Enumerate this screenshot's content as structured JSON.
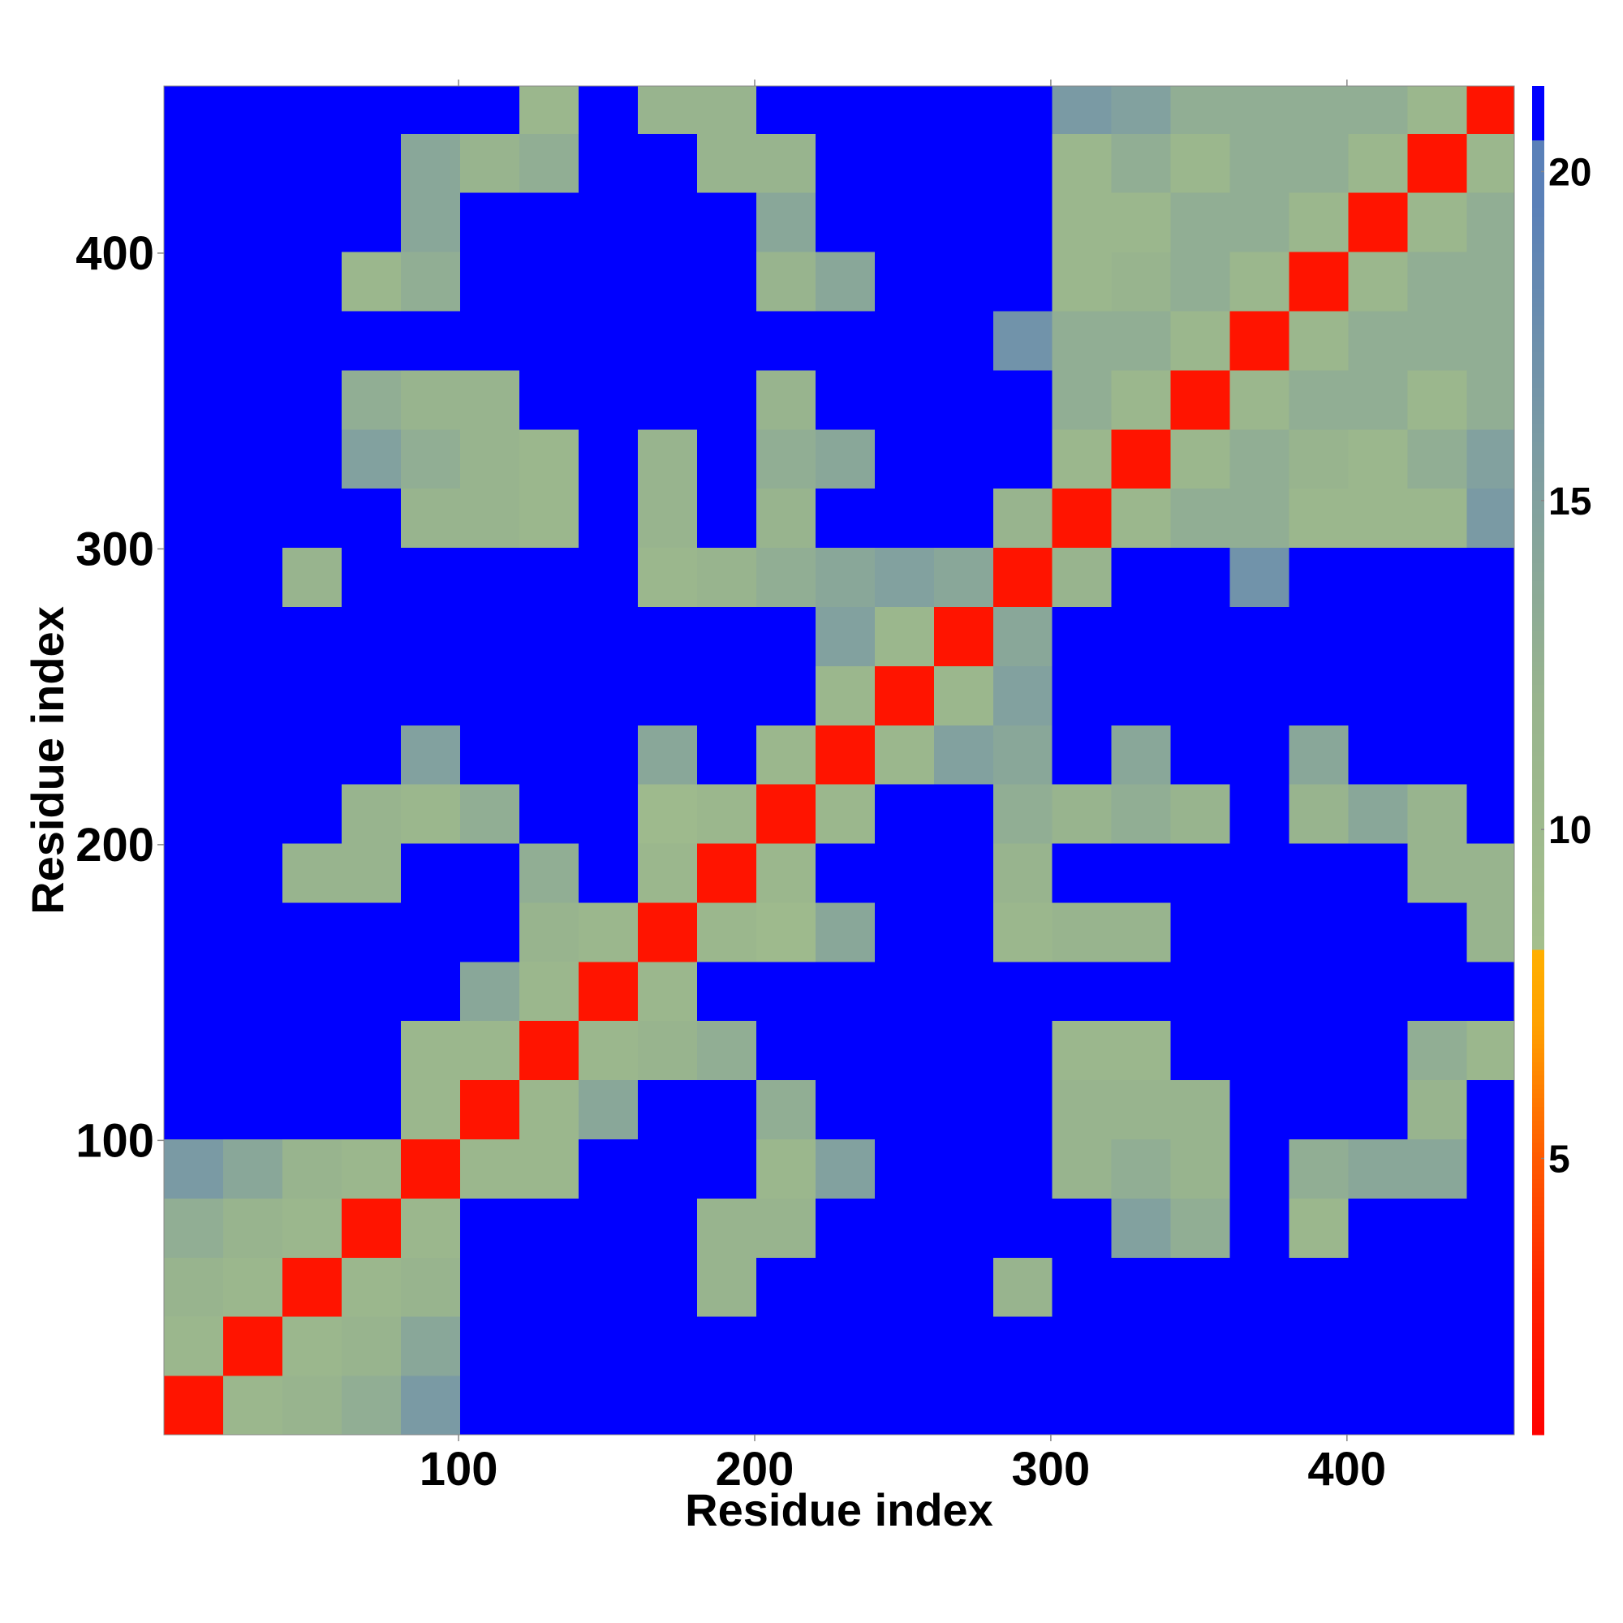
{
  "chart_data": {
    "type": "heatmap",
    "x_label": "Residue index",
    "y_label": "Residue index",
    "x_bins": [
      0.5,
      20.5,
      40.5,
      60.5,
      80.5,
      100.5,
      120.5,
      140.5,
      160.5,
      180.5,
      200.5,
      220.5,
      240.5,
      260.5,
      280.5,
      300.5,
      320.5,
      340.5,
      360.5,
      380.5,
      400.5,
      420.5,
      440.5,
      456.5
    ],
    "y_bins": [
      0.5,
      20.5,
      40.5,
      60.5,
      80.5,
      100.5,
      120.5,
      140.5,
      160.5,
      180.5,
      200.5,
      220.5,
      240.5,
      260.5,
      280.5,
      300.5,
      320.5,
      340.5,
      360.5,
      380.5,
      400.5,
      420.5,
      440.5,
      456.5
    ],
    "z": [
      [
        2,
        11,
        12,
        13,
        16,
        21,
        21,
        21,
        21,
        21,
        21,
        21,
        21,
        21,
        21,
        21,
        21,
        21,
        21,
        21,
        21,
        21,
        21
      ],
      [
        11,
        2,
        11,
        12,
        14,
        21,
        21,
        21,
        21,
        21,
        21,
        21,
        21,
        21,
        21,
        21,
        21,
        21,
        21,
        21,
        21,
        21,
        21
      ],
      [
        12,
        11,
        2,
        11,
        12,
        21,
        21,
        21,
        21,
        12,
        21,
        21,
        21,
        21,
        12,
        21,
        21,
        21,
        21,
        21,
        21,
        21,
        21
      ],
      [
        13,
        12,
        11,
        2,
        11,
        21,
        21,
        21,
        21,
        12,
        12,
        21,
        21,
        21,
        21,
        21,
        15,
        13,
        21,
        11,
        21,
        21,
        21
      ],
      [
        16,
        14,
        12,
        11,
        2,
        11,
        11,
        21,
        21,
        21,
        11,
        15,
        21,
        21,
        21,
        12,
        13,
        12,
        21,
        13,
        14,
        14,
        21
      ],
      [
        21,
        21,
        21,
        21,
        11,
        2,
        11,
        14,
        21,
        21,
        13,
        21,
        21,
        21,
        21,
        12,
        12,
        12,
        21,
        21,
        21,
        12,
        21
      ],
      [
        21,
        21,
        21,
        21,
        11,
        11,
        2,
        11,
        12,
        13,
        21,
        21,
        21,
        21,
        21,
        11,
        11,
        21,
        21,
        21,
        21,
        13,
        11
      ],
      [
        21,
        21,
        21,
        21,
        21,
        14,
        11,
        2,
        11,
        21,
        21,
        21,
        21,
        21,
        21,
        21,
        21,
        21,
        21,
        21,
        21,
        21,
        21
      ],
      [
        21,
        21,
        21,
        21,
        21,
        21,
        12,
        11,
        2,
        11,
        10,
        14,
        21,
        21,
        11,
        12,
        12,
        21,
        21,
        21,
        21,
        21,
        12
      ],
      [
        21,
        21,
        12,
        12,
        21,
        21,
        13,
        21,
        11,
        2,
        11,
        21,
        21,
        21,
        12,
        21,
        21,
        21,
        21,
        21,
        21,
        12,
        12
      ],
      [
        21,
        21,
        21,
        12,
        11,
        13,
        21,
        21,
        10,
        11,
        2,
        11,
        21,
        21,
        13,
        12,
        13,
        12,
        21,
        12,
        14,
        12,
        21
      ],
      [
        21,
        21,
        21,
        21,
        15,
        21,
        21,
        21,
        14,
        21,
        11,
        2,
        11,
        15,
        14,
        21,
        14,
        21,
        21,
        14,
        21,
        21,
        21
      ],
      [
        21,
        21,
        21,
        21,
        21,
        21,
        21,
        21,
        21,
        21,
        21,
        11,
        2,
        11,
        15,
        21,
        21,
        21,
        21,
        21,
        21,
        21,
        21
      ],
      [
        21,
        21,
        21,
        21,
        21,
        21,
        21,
        21,
        21,
        21,
        21,
        15,
        11,
        2,
        14,
        21,
        21,
        21,
        21,
        21,
        21,
        21,
        21
      ],
      [
        21,
        21,
        12,
        21,
        21,
        21,
        21,
        21,
        11,
        12,
        13,
        14,
        15,
        14,
        2,
        12,
        21,
        21,
        17,
        21,
        21,
        21,
        21
      ],
      [
        21,
        21,
        21,
        21,
        12,
        12,
        11,
        21,
        12,
        21,
        12,
        21,
        21,
        21,
        12,
        2,
        11,
        13,
        13,
        11,
        11,
        11,
        16
      ],
      [
        21,
        21,
        21,
        15,
        13,
        12,
        11,
        21,
        12,
        21,
        13,
        14,
        21,
        21,
        21,
        11,
        2,
        11,
        13,
        12,
        11,
        13,
        15
      ],
      [
        21,
        21,
        21,
        13,
        12,
        12,
        21,
        21,
        21,
        21,
        12,
        21,
        21,
        21,
        21,
        13,
        11,
        2,
        11,
        13,
        13,
        11,
        13
      ],
      [
        21,
        21,
        21,
        21,
        21,
        21,
        21,
        21,
        21,
        21,
        21,
        21,
        21,
        21,
        17,
        13,
        13,
        11,
        2,
        11,
        13,
        13,
        13
      ],
      [
        21,
        21,
        21,
        11,
        13,
        21,
        21,
        21,
        21,
        21,
        12,
        14,
        21,
        21,
        21,
        11,
        12,
        13,
        11,
        2,
        11,
        13,
        13
      ],
      [
        21,
        21,
        21,
        21,
        14,
        21,
        21,
        21,
        21,
        21,
        14,
        21,
        21,
        21,
        21,
        11,
        11,
        13,
        13,
        11,
        2,
        11,
        13
      ],
      [
        21,
        21,
        21,
        21,
        14,
        12,
        13,
        21,
        21,
        12,
        12,
        21,
        21,
        21,
        21,
        11,
        13,
        11,
        13,
        13,
        11,
        2,
        11
      ],
      [
        21,
        21,
        21,
        21,
        21,
        21,
        11,
        21,
        12,
        12,
        21,
        21,
        21,
        21,
        21,
        16,
        15,
        13,
        13,
        13,
        13,
        11,
        2
      ]
    ],
    "xlim": [
      0.5,
      456.5
    ],
    "ylim": [
      0.5,
      456.5
    ],
    "xticks": [
      100,
      200,
      300,
      400
    ],
    "yticks": [
      100,
      200,
      300,
      400
    ],
    "colorbar": {
      "clim": [
        0.8,
        21.3
      ],
      "ticks": [
        5,
        10,
        15,
        20
      ]
    },
    "colorscale": [
      [
        0.8,
        "#ff0000"
      ],
      [
        3,
        "#ff2400"
      ],
      [
        5,
        "#ff5a00"
      ],
      [
        7,
        "#ffa000"
      ],
      [
        8.2,
        "#ffb000"
      ],
      [
        8.21,
        "#a4bf8c"
      ],
      [
        12,
        "#98b48e"
      ],
      [
        16,
        "#7a9aa4"
      ],
      [
        19.5,
        "#5a80b8"
      ],
      [
        20.5,
        "#5a80b8"
      ],
      [
        20.51,
        "#0000ff"
      ],
      [
        21.3,
        "#0000ff"
      ]
    ]
  }
}
